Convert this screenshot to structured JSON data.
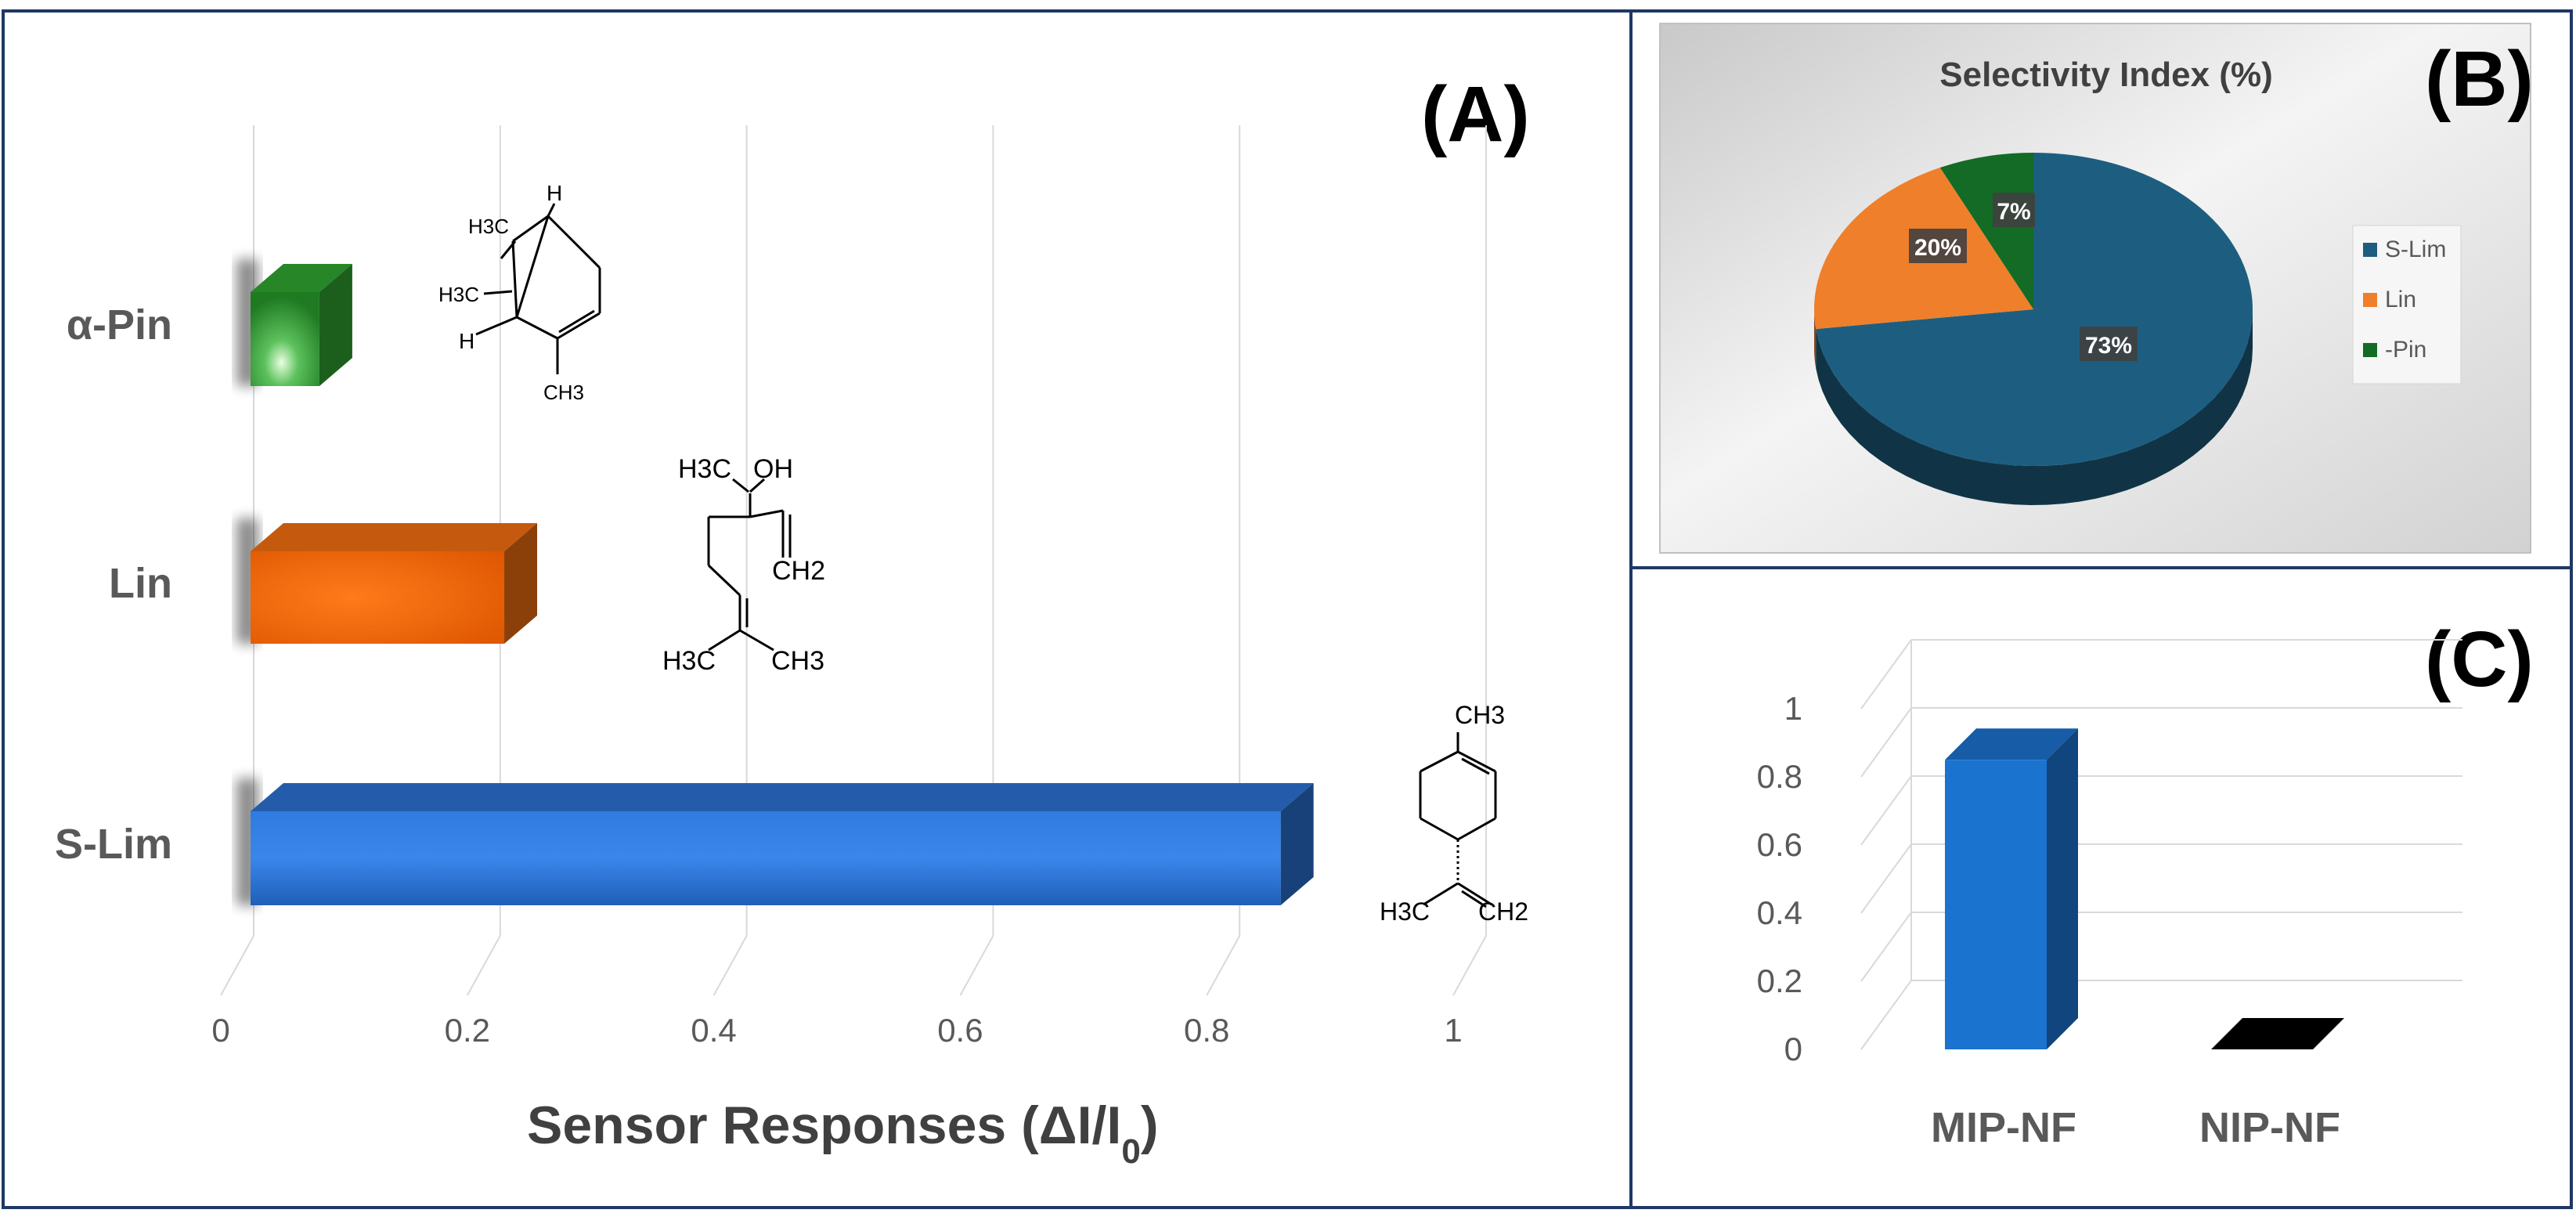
{
  "colors": {
    "border": "#1f3864",
    "grid": "#d9d9d9",
    "bar_pin": "#2e9e2e",
    "bar_lin": "#e86a10",
    "bar_slim": "#2a6cc9",
    "pie_slim": "#1d5e80",
    "pie_lin": "#ef7f2a",
    "pie_pin": "#136b25",
    "bar_mip": "#1b73d0",
    "bar_nip": "#000000"
  },
  "panels": {
    "a": {
      "letter": "(A)"
    },
    "b": {
      "letter": "(B)"
    },
    "c": {
      "letter": "(C)"
    }
  },
  "chemistry": {
    "pinene": {
      "h3c_top": "H3C",
      "h3c_mid": "H3C",
      "h_top": "H",
      "h_low": "H",
      "ch3": "CH3"
    },
    "linalool": {
      "h3c_top": "H3C",
      "oh": "OH",
      "ch2": "CH2",
      "h3c_bot": "H3C",
      "ch3_bot": "CH3"
    },
    "limonene": {
      "ch3_top": "CH3",
      "h3c": "H3C",
      "ch2": "CH2"
    }
  },
  "chart_data": [
    {
      "type": "bar",
      "orientation": "horizontal",
      "categories": [
        "α-Pin",
        "Lin",
        "S-Lim"
      ],
      "values": [
        0.08,
        0.23,
        0.86
      ],
      "xlabel": "Sensor Responses (ΔI/I0)",
      "xlabel_main": "Sensor Responses (ΔI/I",
      "xlabel_sub": "0",
      "xlabel_end": ")",
      "xlim": [
        0,
        1
      ],
      "xticks": [
        "0",
        "0.2",
        "0.4",
        "0.6",
        "0.8",
        "1"
      ],
      "grid": true
    },
    {
      "type": "pie",
      "title": "Selectivity Index (%)",
      "slices": [
        {
          "name": "S-Lim",
          "value": 73,
          "label": "73%"
        },
        {
          "name": "Lin",
          "value": 20,
          "label": "20%"
        },
        {
          "name": "-Pin",
          "value": 7,
          "label": "7%"
        }
      ],
      "legend": "right"
    },
    {
      "type": "bar",
      "categories": [
        "MIP-NF",
        "NIP-NF"
      ],
      "values": [
        0.85,
        0.0
      ],
      "ylim": [
        0,
        1
      ],
      "yticks": [
        "0",
        "0.2",
        "0.4",
        "0.6",
        "0.8",
        "1"
      ],
      "grid": true
    }
  ]
}
